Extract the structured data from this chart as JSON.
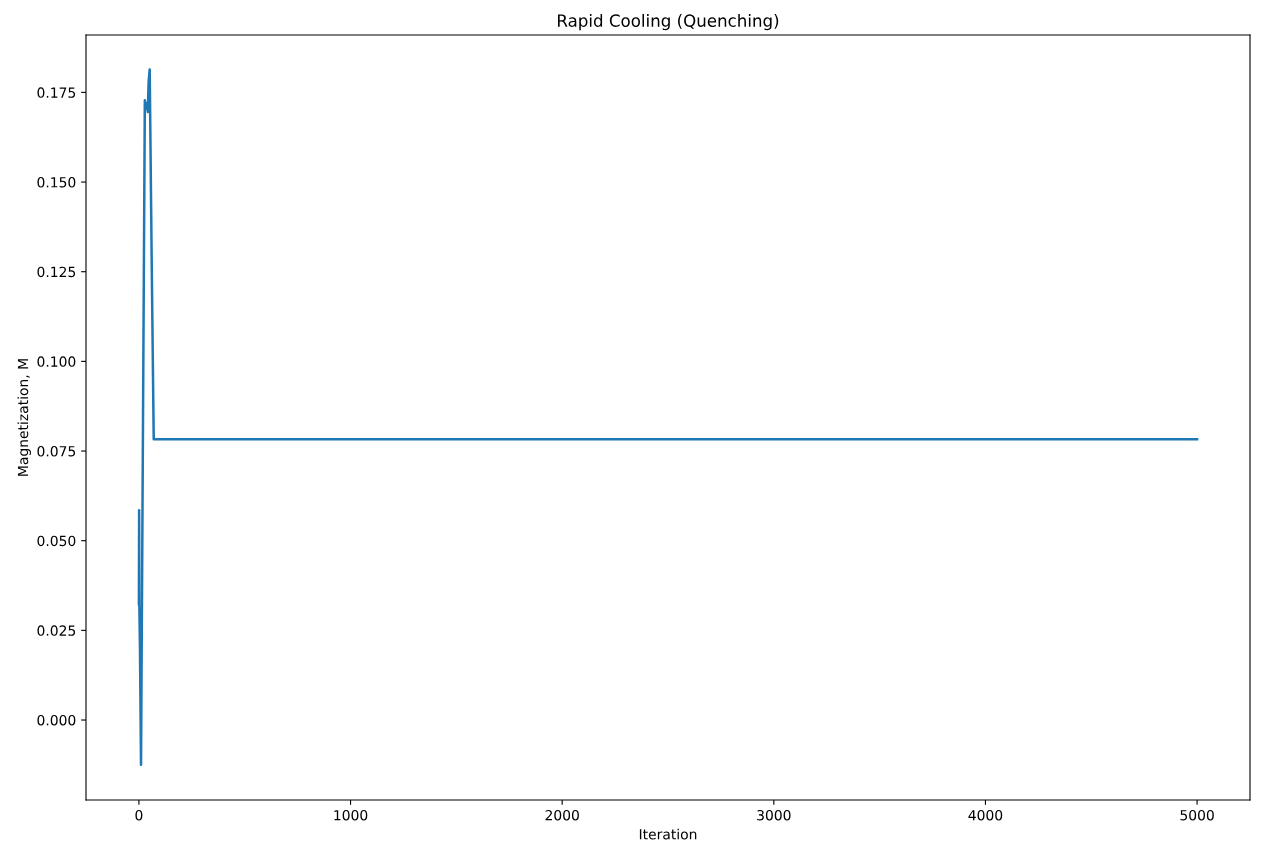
{
  "chart_data": {
    "type": "line",
    "title": "Rapid Cooling (Quenching)",
    "xlabel": "Iteration",
    "ylabel": "Magnetization, M",
    "series": [
      {
        "color": "#1f77b4",
        "x": [
          0,
          1,
          2,
          5,
          10,
          20,
          28,
          33,
          38,
          42,
          46,
          51,
          60,
          70,
          100,
          500,
          1000,
          2000,
          3000,
          4000,
          5000
        ],
        "values": [
          0.0323,
          0.0585,
          0.0323,
          0.02,
          -0.0125,
          0.09,
          0.1728,
          0.1705,
          0.172,
          0.1695,
          0.178,
          0.1814,
          0.13,
          0.0783,
          0.0783,
          0.0783,
          0.0783,
          0.0783,
          0.0783,
          0.0783,
          0.0783
        ]
      }
    ],
    "xlim": [
      -250,
      5250
    ],
    "ylim": [
      -0.0223,
      0.191
    ],
    "xticks": [
      0,
      1000,
      2000,
      3000,
      4000,
      5000
    ],
    "yticks": [
      {
        "value": 0,
        "label": "0.000"
      },
      {
        "value": 0.025,
        "label": "0.025"
      },
      {
        "value": 0.05,
        "label": "0.050"
      },
      {
        "value": 0.075,
        "label": "0.075"
      },
      {
        "value": 0.1,
        "label": "0.100"
      },
      {
        "value": 0.125,
        "label": "0.125"
      },
      {
        "value": 0.15,
        "label": "0.150"
      },
      {
        "value": 0.175,
        "label": "0.175"
      }
    ],
    "grid": false,
    "legend": false
  }
}
